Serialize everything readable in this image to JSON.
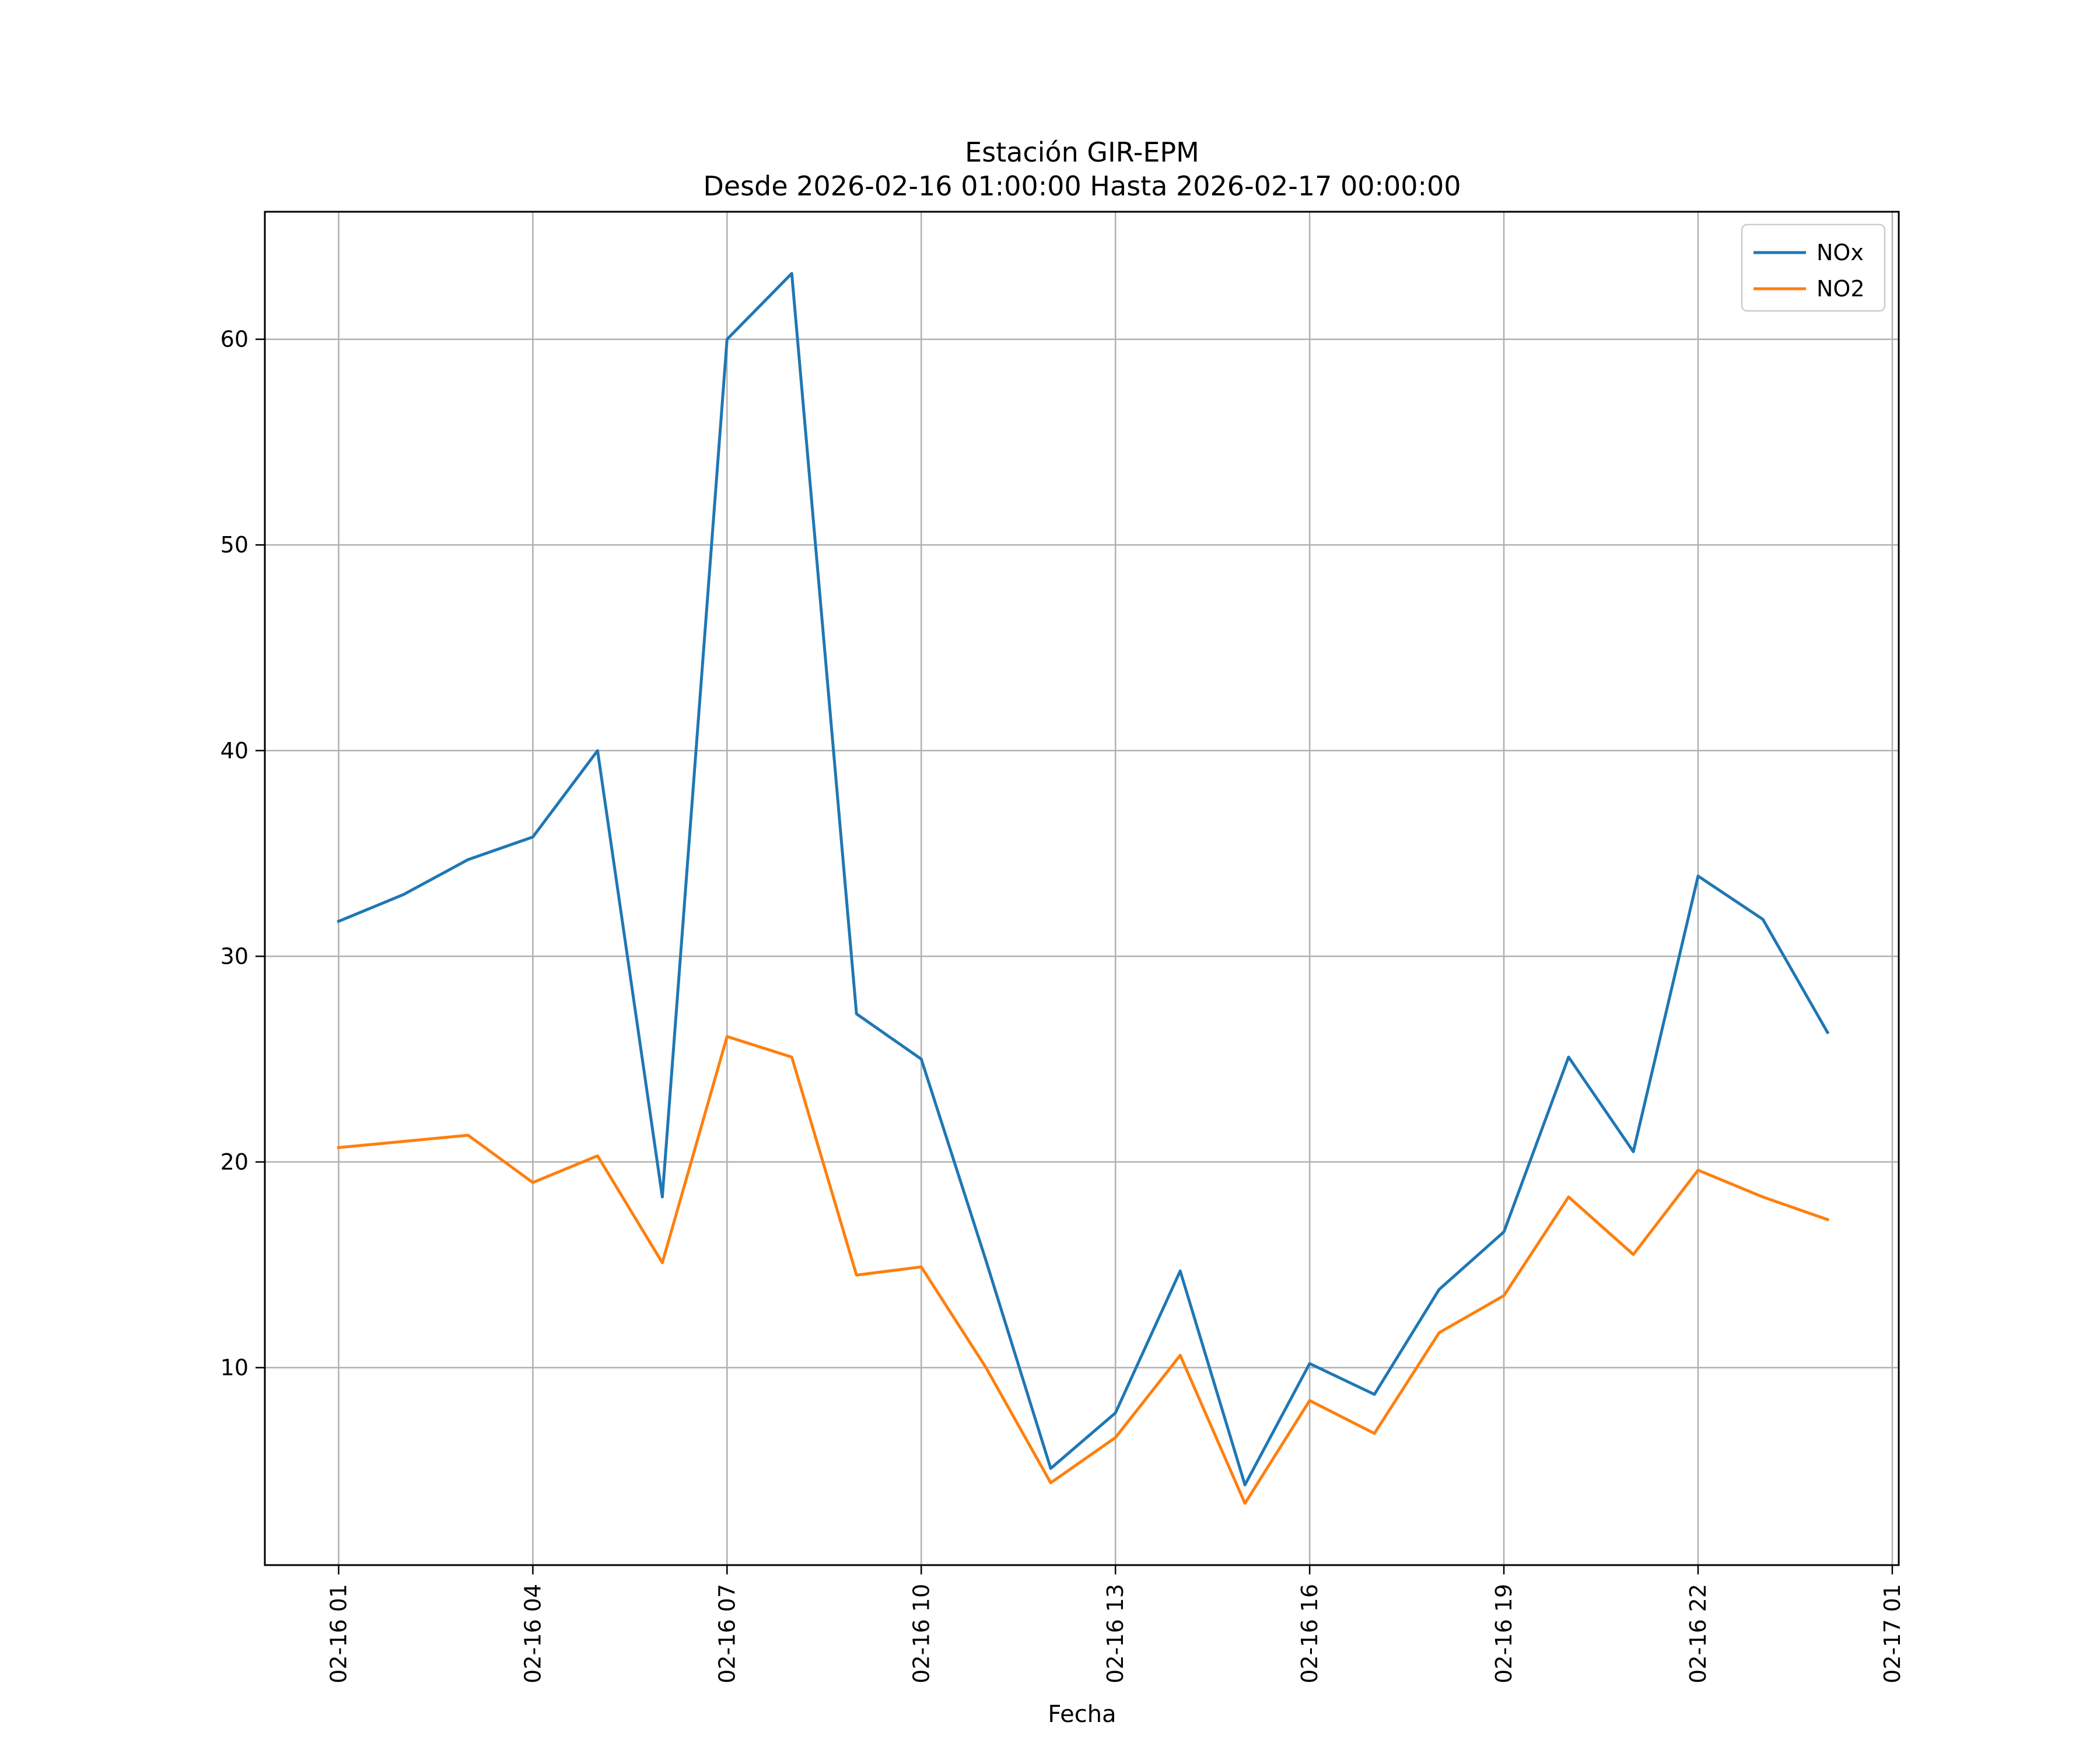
{
  "chart_data": {
    "type": "line",
    "title": "Estación GIR-EPM",
    "subtitle": "Desde 2026-02-16 01:00:00 Hasta 2026-02-17 00:00:00",
    "xlabel": "Fecha",
    "ylabel": "",
    "x": [
      "02-16 01",
      "02-16 02",
      "02-16 03",
      "02-16 04",
      "02-16 05",
      "02-16 06",
      "02-16 07",
      "02-16 08",
      "02-16 09",
      "02-16 10",
      "02-16 11",
      "02-16 12",
      "02-16 13",
      "02-16 14",
      "02-16 15",
      "02-16 16",
      "02-16 17",
      "02-16 18",
      "02-16 19",
      "02-16 20",
      "02-16 21",
      "02-16 22",
      "02-16 23",
      "02-17 00"
    ],
    "x_hours": [
      1,
      2,
      3,
      4,
      5,
      6,
      7,
      8,
      9,
      10,
      11,
      12,
      13,
      14,
      15,
      16,
      17,
      18,
      19,
      20,
      21,
      22,
      23,
      24
    ],
    "xlim": [
      -0.14,
      25.1
    ],
    "xticks": [
      1,
      4,
      7,
      10,
      13,
      16,
      19,
      22,
      25
    ],
    "xtick_labels": [
      "02-16 01",
      "02-16 04",
      "02-16 07",
      "02-16 10",
      "02-16 13",
      "02-16 16",
      "02-16 19",
      "02-16 22",
      "02-17 01"
    ],
    "ylim": [
      0.4,
      66.2
    ],
    "yticks": [
      10,
      20,
      30,
      40,
      50,
      60
    ],
    "ytick_labels": [
      "10",
      "20",
      "30",
      "40",
      "50",
      "60"
    ],
    "grid": true,
    "legend_position": "top-right",
    "series": [
      {
        "name": "NOx",
        "color": "#1f77b4",
        "values": [
          31.7,
          33.0,
          34.7,
          35.8,
          40.0,
          18.3,
          60.0,
          63.2,
          27.2,
          25.0,
          15.2,
          5.1,
          7.8,
          14.7,
          4.3,
          10.2,
          8.7,
          13.8,
          16.6,
          25.1,
          20.5,
          33.9,
          31.8,
          26.3
        ]
      },
      {
        "name": "NO2",
        "color": "#ff7f0e",
        "values": [
          20.7,
          21.0,
          21.3,
          19.0,
          20.3,
          15.1,
          26.1,
          25.1,
          14.5,
          14.9,
          10.0,
          4.4,
          6.6,
          10.6,
          3.4,
          8.4,
          6.8,
          11.7,
          13.5,
          18.3,
          15.5,
          19.6,
          18.3,
          17.2
        ]
      }
    ]
  }
}
